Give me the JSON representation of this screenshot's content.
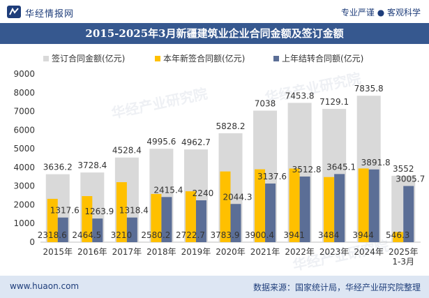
{
  "header": {
    "brand": "华经情报网",
    "tagline": "专业严谨 ● 客观科学"
  },
  "title": "2015-2025年3月新疆建筑业企业合同金额及签订金额",
  "footer": {
    "url": "www.huaon.com",
    "source": "数据来源：国家统计局，华经产业研究院整理"
  },
  "watermarks": [
    "华经产业研究院",
    "华经产业研究院",
    "华经产业研究院"
  ],
  "colors": {
    "series1": "#d9d9d9",
    "series2": "#ffc000",
    "series3": "#5b6e96",
    "title_bg": "#36588f",
    "footer_bg": "#dde6f3"
  },
  "chart_data": {
    "type": "bar",
    "categories": [
      "2015年",
      "2016年",
      "2017年",
      "2018年",
      "2019年",
      "2020年",
      "2021年",
      "2022年",
      "2023年",
      "2024年",
      "2025年\n1-3月"
    ],
    "series": [
      {
        "name": "签订合同金额(亿元)",
        "values": [
          3636.2,
          3728.4,
          4528.4,
          4995.6,
          4962.7,
          5828.2,
          7038,
          7453.8,
          7129.1,
          7835.8,
          3552
        ]
      },
      {
        "name": "本年新签合同额(亿元)",
        "values": [
          2318.6,
          2464.5,
          3210,
          2580.2,
          2722.7,
          3783.9,
          3900.4,
          3941,
          3484,
          3944,
          546.3
        ]
      },
      {
        "name": "上年结转合同额(亿元)",
        "values": [
          1317.6,
          1263.9,
          1318.4,
          2415.4,
          2240,
          2044.3,
          3137.6,
          3512.8,
          3645.1,
          3891.8,
          3005.7
        ]
      }
    ],
    "yticks": [
      0,
      1000,
      2000,
      3000,
      4000,
      5000,
      6000,
      7000,
      8000,
      9000
    ],
    "ylim": [
      0,
      9000
    ],
    "legend": "top",
    "grid": false
  }
}
